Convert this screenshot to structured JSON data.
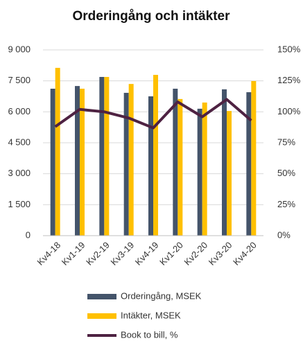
{
  "chart_data": {
    "type": "bar",
    "title": "Orderingång och intäkter",
    "categories": [
      "Kv4-18",
      "Kv1-19",
      "Kv2-19",
      "Kv3-19",
      "Kv4-19",
      "Kv1-20",
      "Kv2-20",
      "Kv3-20",
      "Kv4-20"
    ],
    "series": [
      {
        "name": "Orderingång, MSEK",
        "color": "#44546a",
        "type": "bar",
        "values": [
          7120,
          7250,
          7690,
          6920,
          6750,
          7120,
          6150,
          7090,
          6950
        ]
      },
      {
        "name": "Intäkter, MSEK",
        "color": "#ffc000",
        "type": "bar",
        "values": [
          8130,
          7120,
          7690,
          7350,
          7790,
          6620,
          6450,
          6040,
          7490
        ]
      },
      {
        "name": "Book to bill, %",
        "color": "#4e2242",
        "type": "line",
        "axis": "y2",
        "values": [
          88,
          102,
          100,
          95,
          87,
          108,
          96,
          110,
          93
        ]
      }
    ],
    "ylim": [
      0,
      9000
    ],
    "yticks": [
      0,
      {
        "value": 1500,
        "label": "1 500"
      },
      {
        "value": 3000,
        "label": "3 000"
      },
      {
        "value": 4500,
        "label": "4 500"
      },
      {
        "value": 6000,
        "label": "6 000"
      },
      {
        "value": 7500,
        "label": "7 500"
      },
      {
        "value": 9000,
        "label": "9 000"
      }
    ],
    "y2lim": [
      0,
      150
    ],
    "y2ticks": [
      {
        "value": 0,
        "label": "0%"
      },
      {
        "value": 25,
        "label": "25%"
      },
      {
        "value": 50,
        "label": "50%"
      },
      {
        "value": 75,
        "label": "75%"
      },
      {
        "value": 100,
        "label": "100%"
      },
      {
        "value": 125,
        "label": "125%"
      },
      {
        "value": 150,
        "label": "150%"
      }
    ],
    "grid": true,
    "legend": "bottom"
  }
}
